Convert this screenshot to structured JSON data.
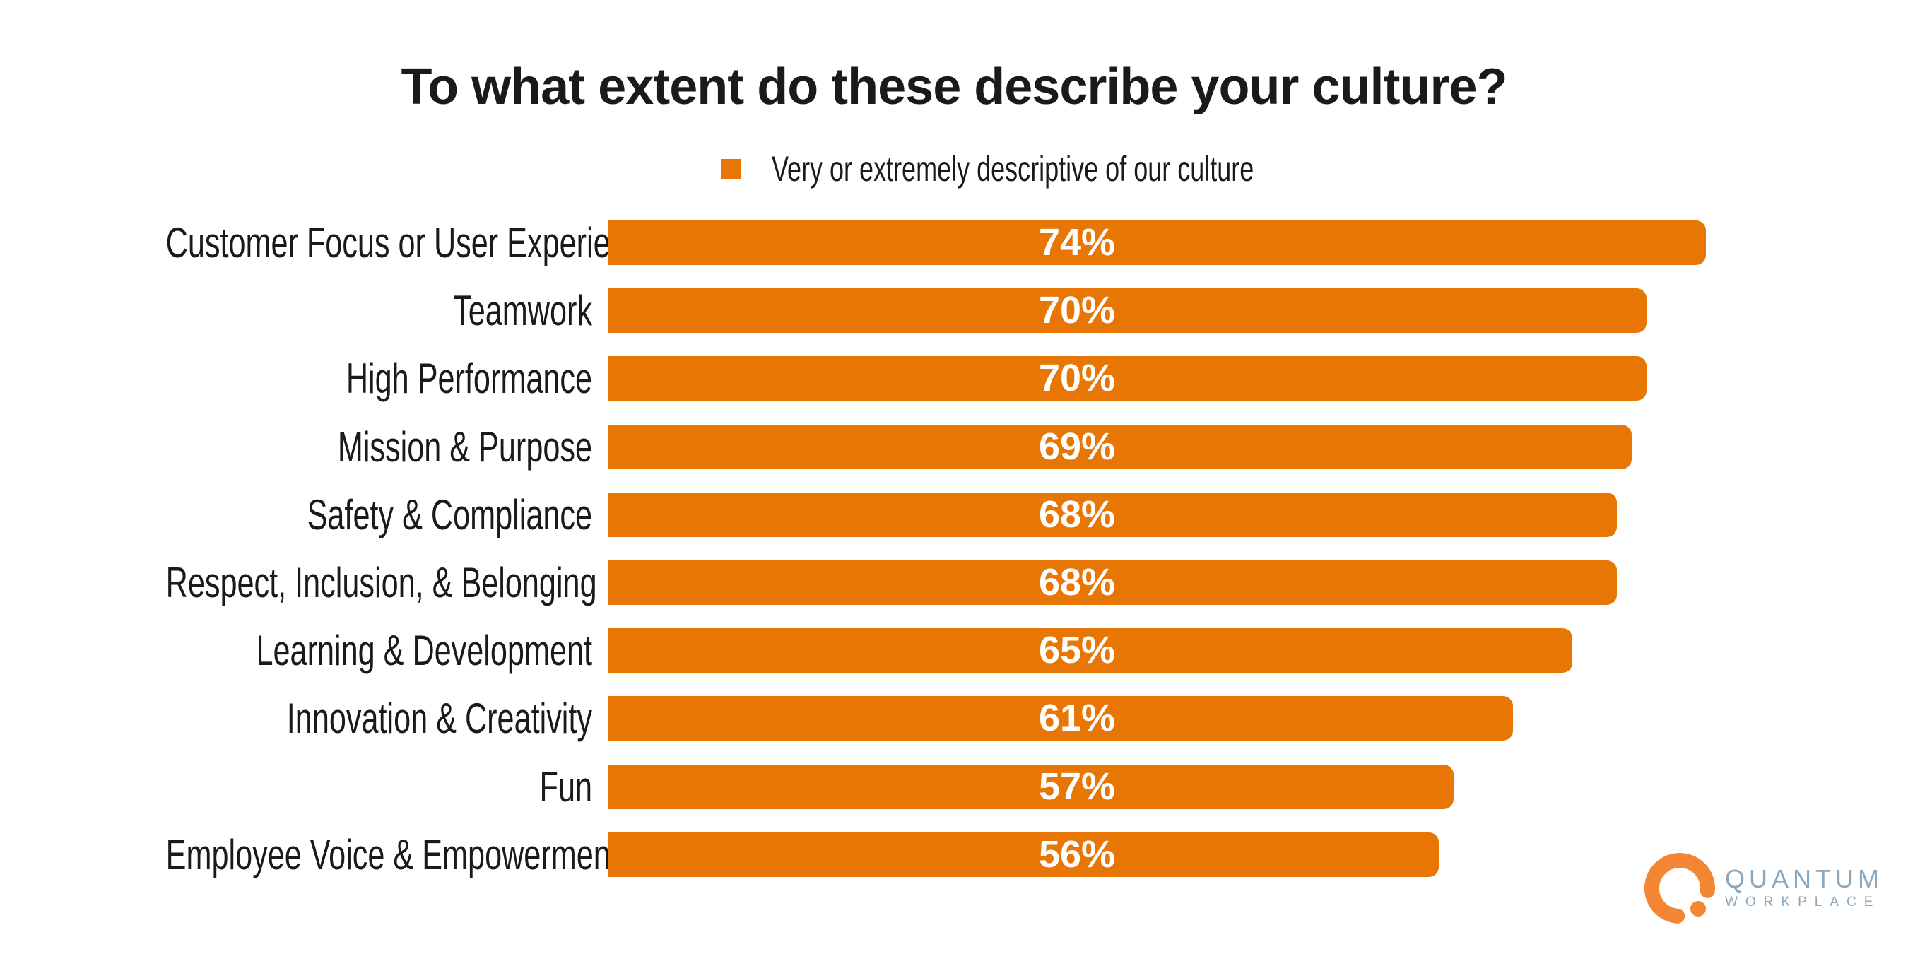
{
  "chart_data": {
    "type": "bar",
    "orientation": "horizontal",
    "title": "To what extent do these describe your culture?",
    "legend": [
      {
        "label": "Very or extremely descriptive of our culture",
        "color": "#E87604"
      }
    ],
    "categories": [
      "Customer Focus or User Experience",
      "Teamwork",
      "High Performance",
      "Mission & Purpose",
      "Safety & Compliance",
      "Respect, Inclusion, & Belonging",
      "Learning & Development",
      "Innovation & Creativity",
      "Fun",
      "Employee Voice & Empowerment"
    ],
    "values": [
      74,
      70,
      70,
      69,
      68,
      68,
      65,
      61,
      57,
      56
    ],
    "labels": [
      "74%",
      "70%",
      "70%",
      "69%",
      "68%",
      "68%",
      "65%",
      "61%",
      "57%",
      "56%"
    ],
    "value_unit": "%",
    "bar_color": "#E87604",
    "value_label_color": "#FFFFFF",
    "grid": false,
    "axis_lines": false,
    "legend_position": "top-center"
  },
  "branding": {
    "line1": "QUANTUM",
    "line2": "WORKPLACE",
    "ring_color": "#F28632",
    "text_color": "#8CA7BB"
  }
}
